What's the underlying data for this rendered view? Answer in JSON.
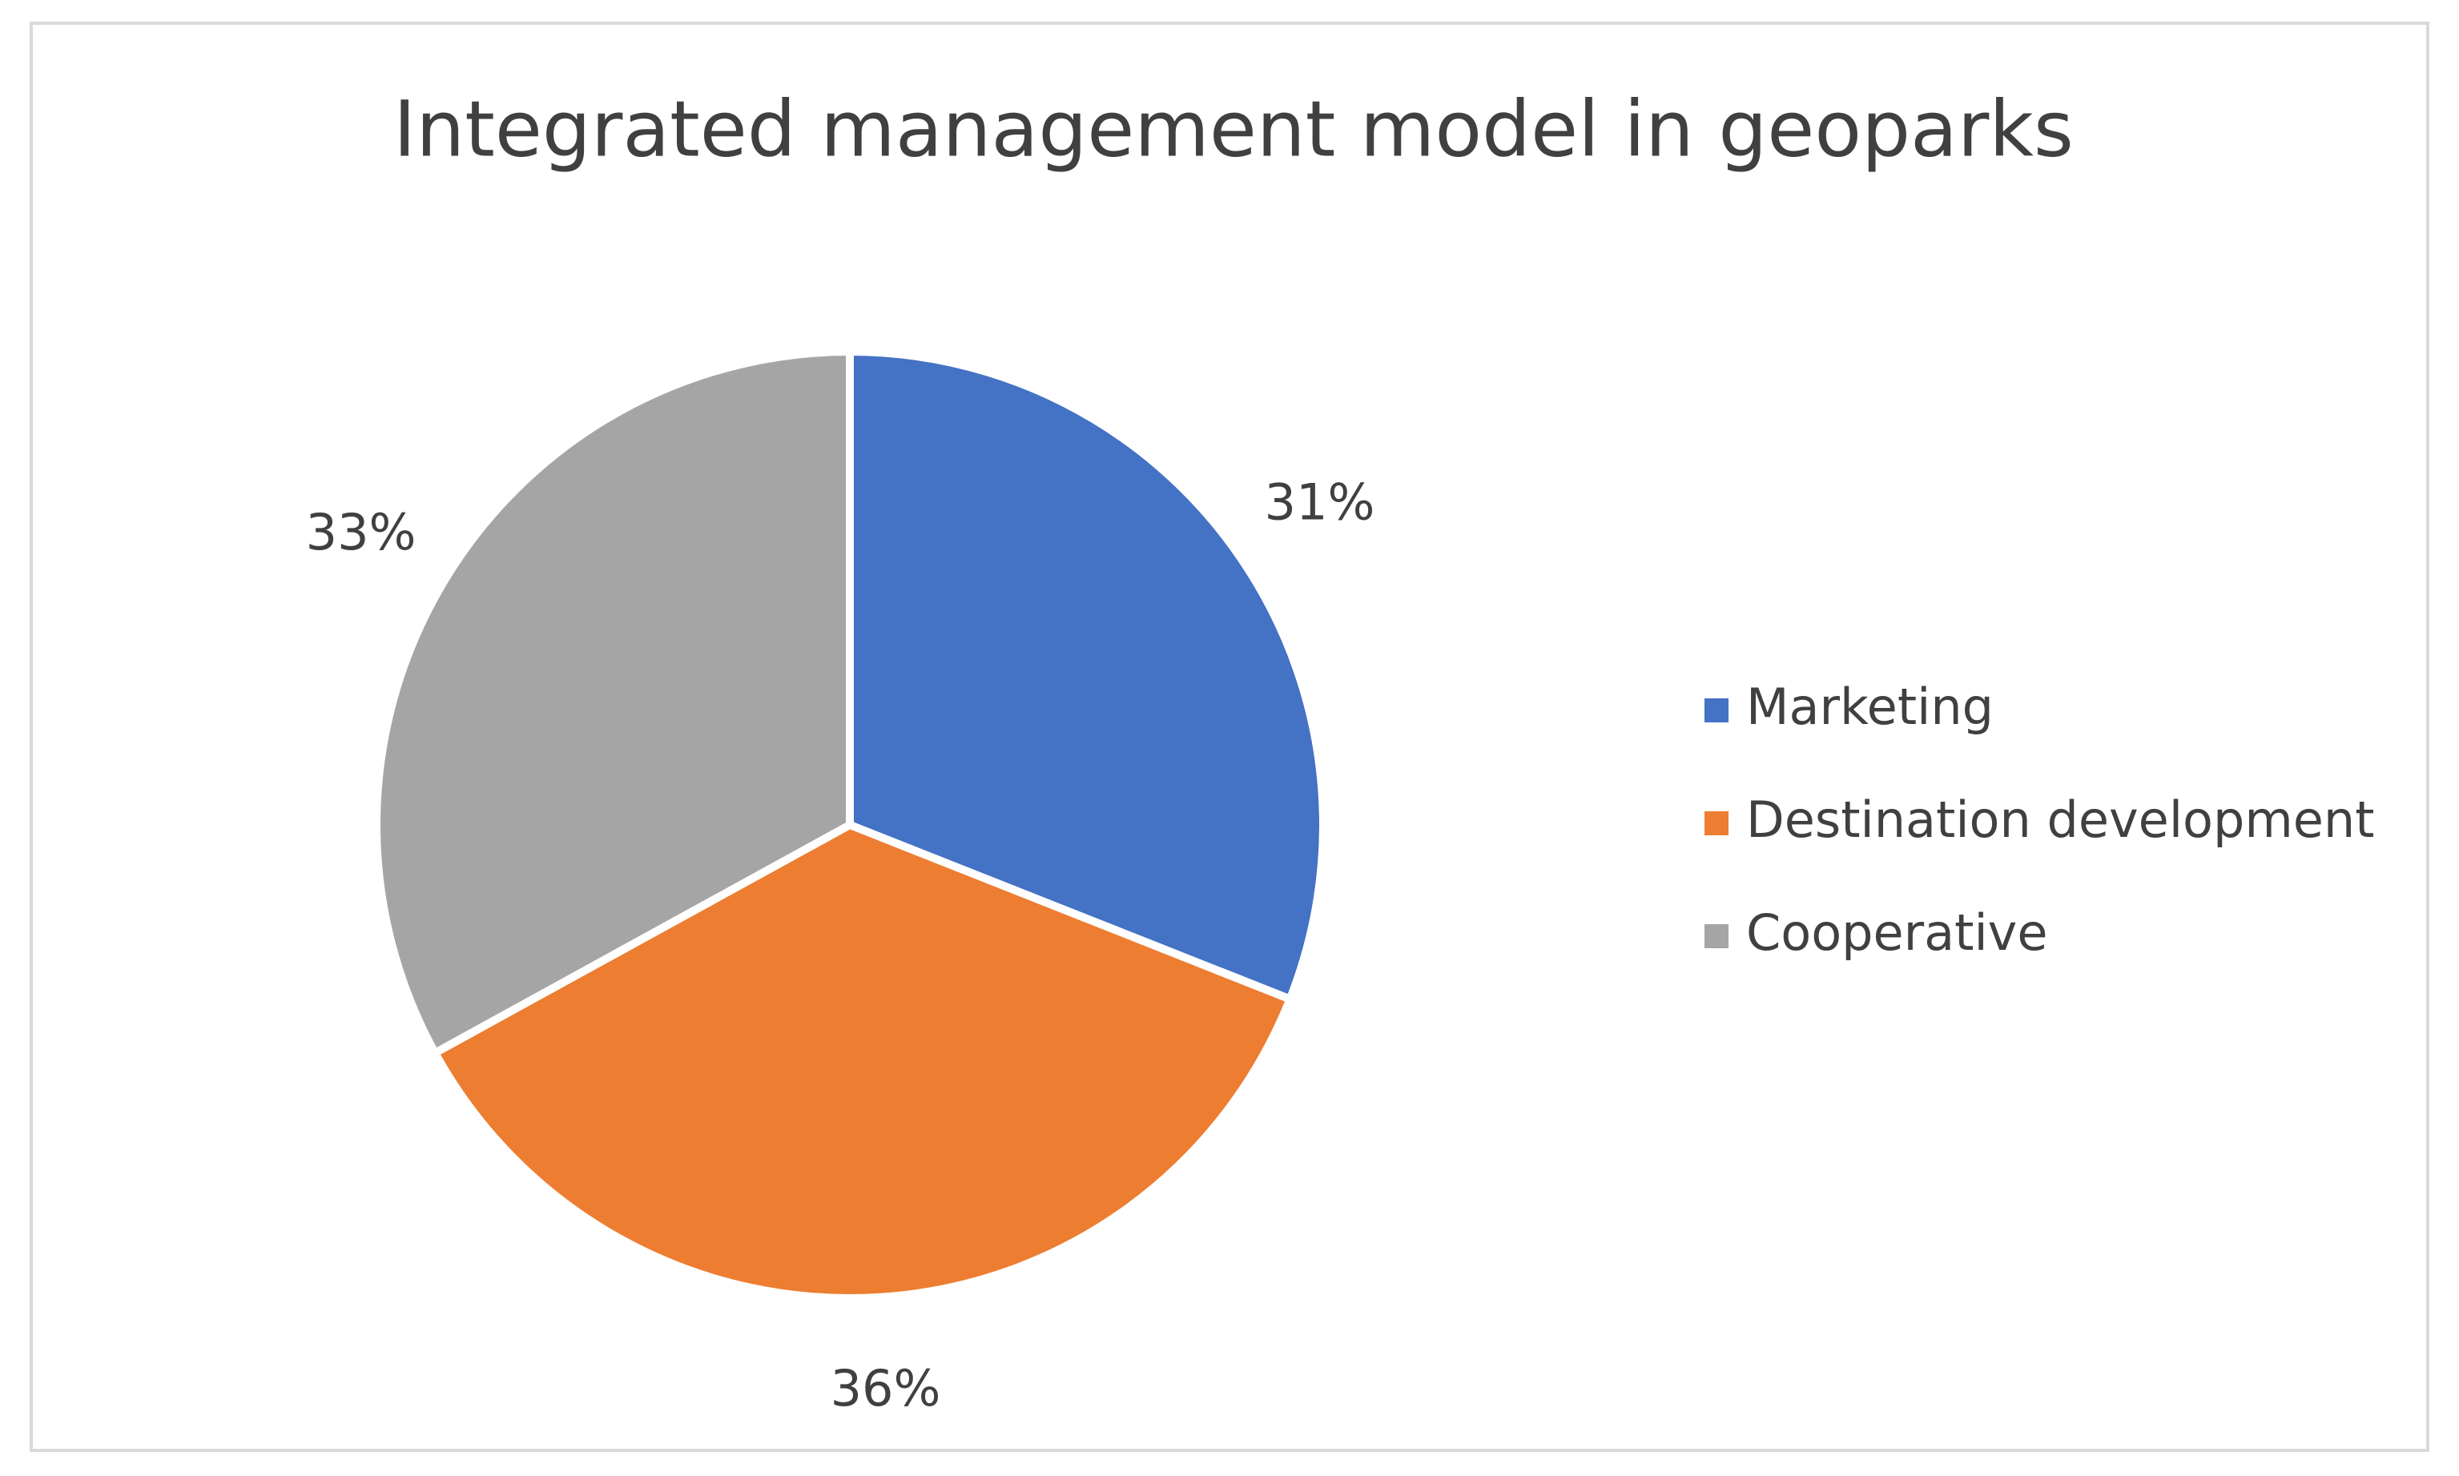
{
  "chart_data": {
    "type": "pie",
    "title": "Integrated management model in geoparks",
    "categories": [
      "Marketing",
      "Destination development",
      "Cooperative"
    ],
    "values": [
      31,
      36,
      33
    ],
    "value_labels": [
      "31%",
      "36%",
      "33%"
    ],
    "colors": [
      "#4472c4",
      "#ed7d31",
      "#a5a5a5"
    ],
    "legend": "right"
  }
}
